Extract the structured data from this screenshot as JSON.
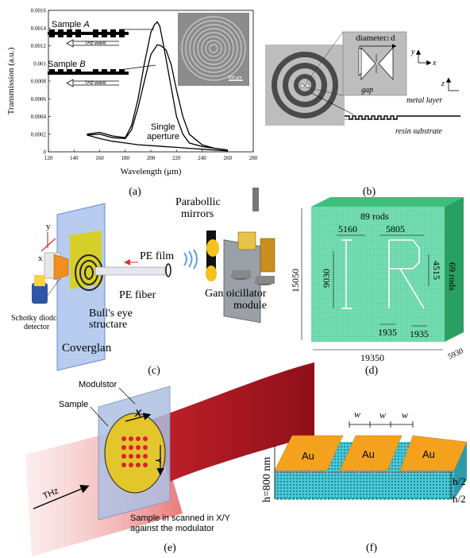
{
  "panel_labels": {
    "a": "(a)",
    "b": "(b)",
    "c": "(c)",
    "d": "(d)",
    "e": "(e)",
    "f": "(f)"
  },
  "chart_data": {
    "type": "line",
    "xlabel": "Wavelength (μm)",
    "ylabel": "Transmission (a.u.)",
    "xlim": [
      120,
      280
    ],
    "ylim": [
      0,
      0.0016
    ],
    "x_ticks": [
      "120",
      "140",
      "160",
      "180",
      "200",
      "220",
      "240",
      "260",
      "280"
    ],
    "y_ticks": [
      "0",
      "0.0002",
      "0.0004",
      "0.0006",
      "0.0008",
      "0.001",
      "0.0012",
      "0.0014",
      "0.0016"
    ],
    "series": [
      {
        "name": "Sample A",
        "x": [
          150,
          160,
          170,
          180,
          185,
          190,
          195,
          200,
          203,
          205,
          207,
          210,
          215,
          220,
          225,
          230,
          240,
          250,
          260
        ],
        "y": [
          0.0002,
          0.00022,
          0.00018,
          0.00016,
          0.0003,
          0.0006,
          0.001,
          0.00135,
          0.00144,
          0.00147,
          0.00142,
          0.0012,
          0.0008,
          0.0004,
          0.0002,
          0.0001,
          6e-05,
          4e-05,
          2e-05
        ]
      },
      {
        "name": "Sample B",
        "x": [
          150,
          160,
          170,
          180,
          185,
          190,
          195,
          200,
          205,
          208,
          212,
          216,
          220,
          225,
          230,
          240,
          250,
          260
        ],
        "y": [
          0.00019,
          0.0002,
          0.00016,
          0.00015,
          0.00025,
          0.0005,
          0.0008,
          0.0011,
          0.00121,
          0.0012,
          0.00115,
          0.00098,
          0.0007,
          0.0004,
          0.0002,
          8e-05,
          4e-05,
          2e-05
        ]
      },
      {
        "name": "Single aperture",
        "x": [
          150,
          160,
          170,
          180,
          190,
          200,
          210,
          220,
          230,
          240,
          250,
          260
        ],
        "y": [
          0.00019,
          0.00015,
          0.00012,
          0.0001,
          8e-05,
          7e-05,
          6e-05,
          5e-05,
          4e-05,
          3e-05,
          2e-05,
          1e-05
        ]
      }
    ],
    "annotations": {
      "sample_a": "Sample",
      "sample_a_letter": "A",
      "sample_b": "Sample",
      "sample_b_letter": "B",
      "thz_wave_a": "THz-wave",
      "thz_wave_b": "THz-wave",
      "single": "Single",
      "aperture": "aperture",
      "scale": "500 μm"
    }
  },
  "panel_b": {
    "diameter": "diameter",
    "d": "d",
    "sub2": "2",
    "gap": "gap",
    "axis_y": "y",
    "axis_x": "x",
    "axis_z": "z",
    "metal_layer": "metal layer",
    "resin_substrate": "resin substrate"
  },
  "panel_c": {
    "parabolic": "Parabollic",
    "mirrors": "mirrors",
    "pe_film": "PE film",
    "pe_fiber": "PE fiber",
    "gan1": "Gan oicillator",
    "gan2": "module",
    "bulls1": "Bull's eye",
    "bulls2": "structare",
    "schottky1": "Schotky diodc",
    "schottky2": "detector",
    "coverglan": "Coverglan",
    "axis_y": "y",
    "axis_x": "x"
  },
  "panel_d": {
    "rods_top": "89 rods",
    "rods_right": "69 rods",
    "dim_5160": "5160",
    "dim_5805": "5805",
    "dim_9030": "9030",
    "dim_4515": "4515",
    "dim_15050": "15050",
    "dim_1935a": "1935",
    "dim_1935b": "1935",
    "dim_19350": "19350",
    "dim_5930": "5930"
  },
  "panel_e": {
    "modulator": "Modulstor",
    "sample": "Sample",
    "thz": "THz",
    "x": "X",
    "y": "Y",
    "caption1": "Sample in scanned in X/Y",
    "caption2": "against the modulator"
  },
  "panel_f": {
    "w1": "w",
    "w2": "w",
    "w3": "w",
    "au1": "Au",
    "au2": "Au",
    "au3": "Au",
    "h800": "h=800 nm",
    "h2a": "h/2",
    "h2b": "h/2"
  }
}
